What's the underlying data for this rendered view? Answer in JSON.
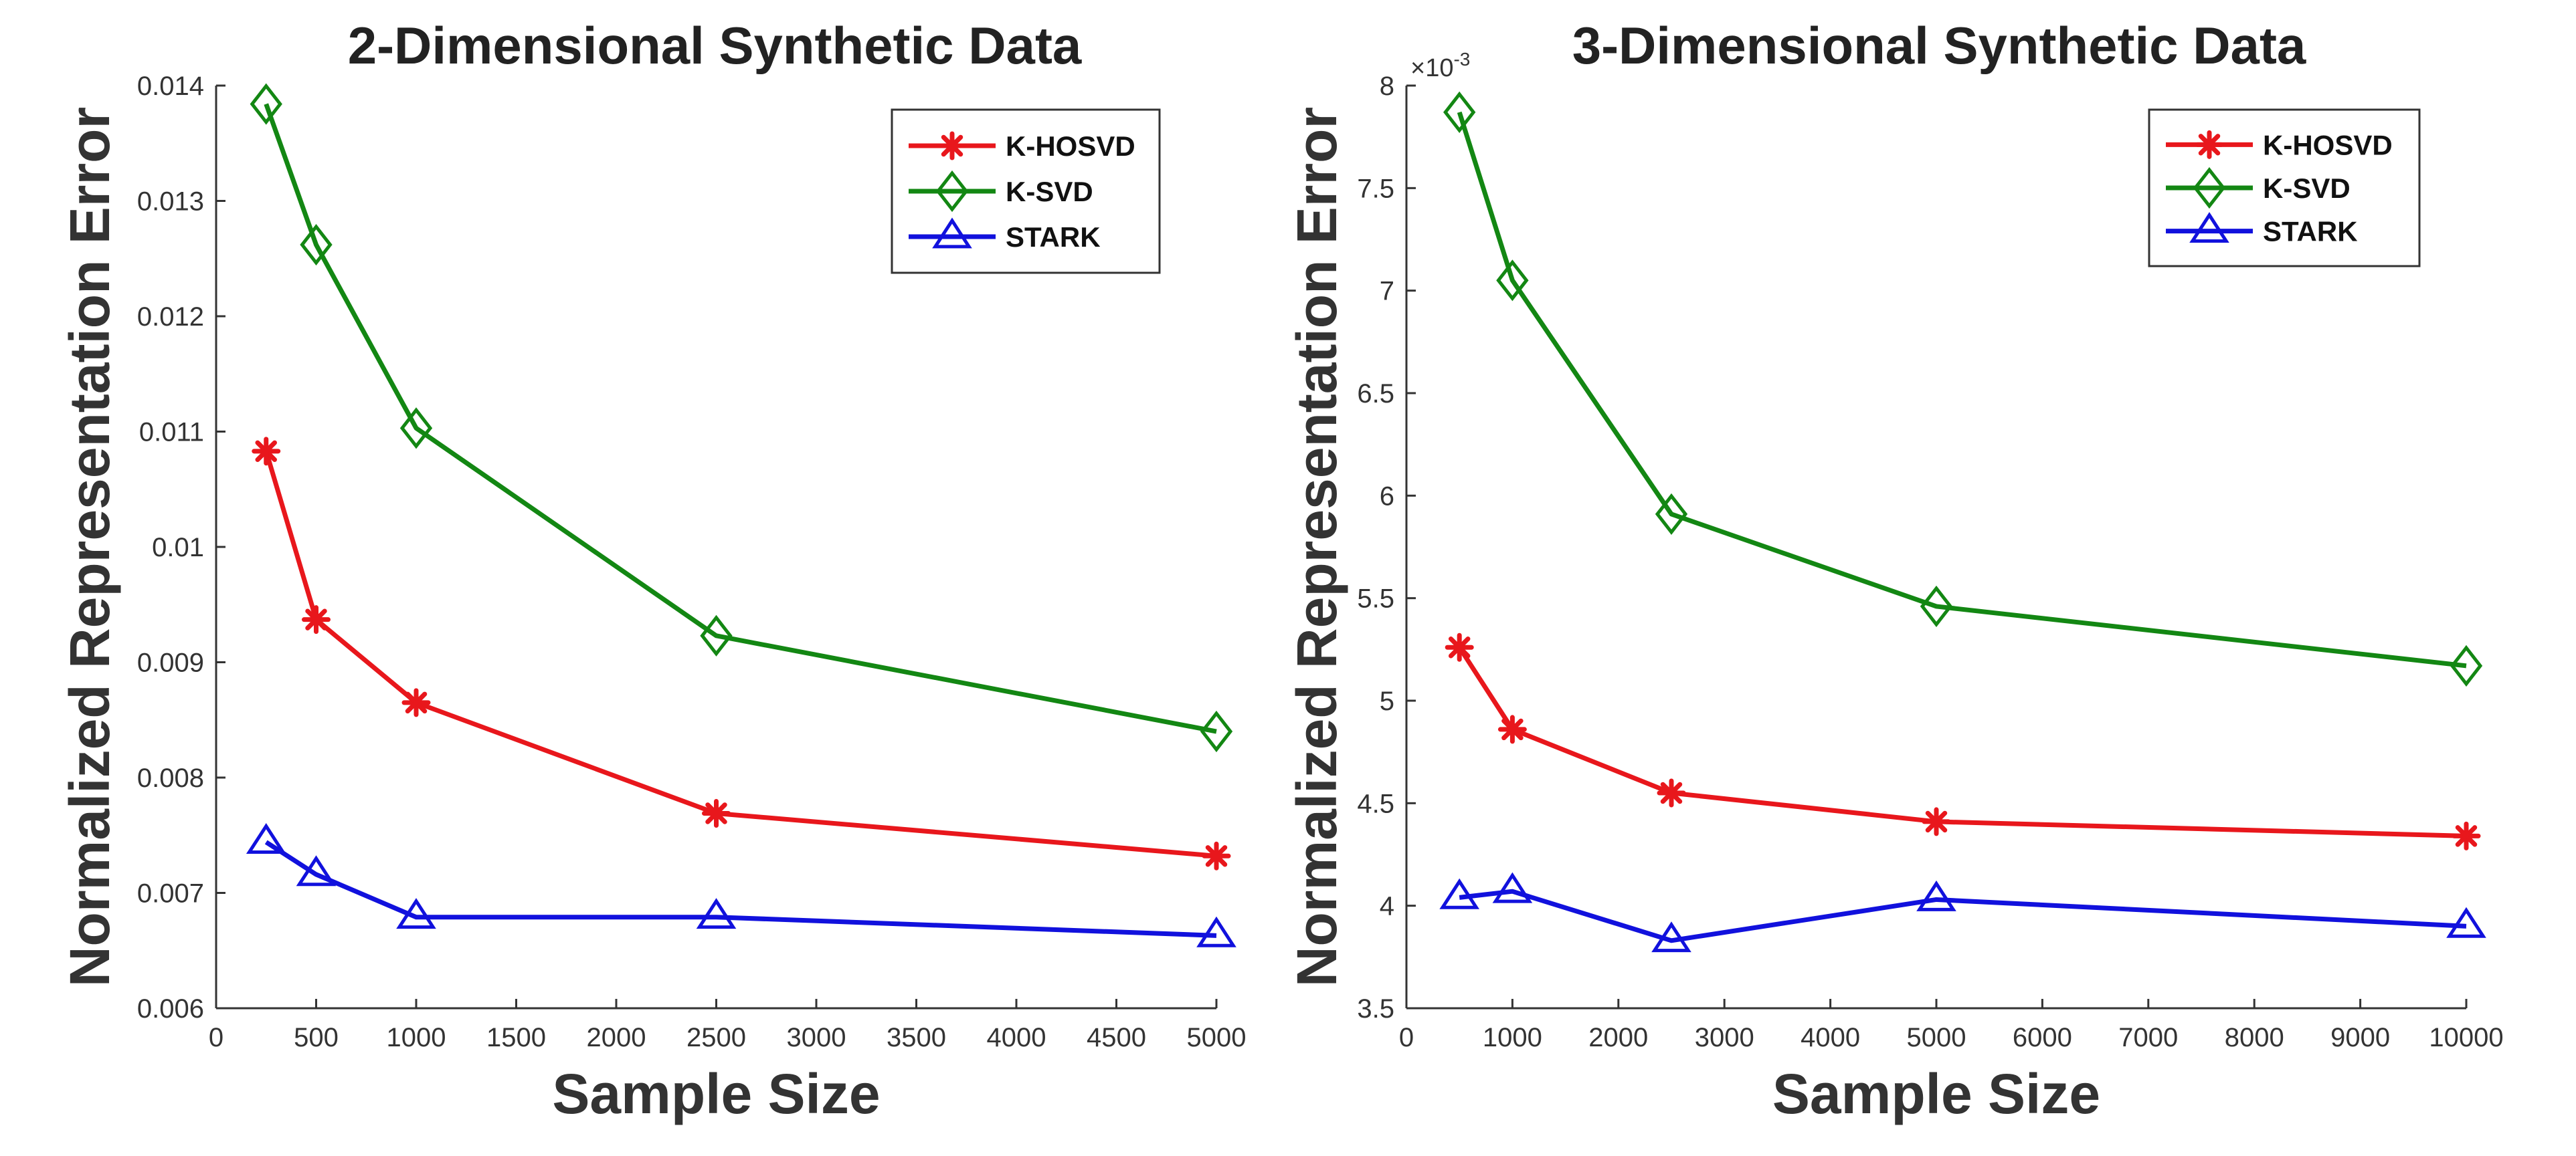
{
  "chart_data": [
    {
      "type": "line",
      "title": "2-Dimensional Synthetic Data",
      "xlabel": "Sample Size",
      "ylabel": "Normalized Representation Error",
      "xlim": [
        0,
        5000
      ],
      "ylim": [
        0.006,
        0.014
      ],
      "xticks": [
        0,
        500,
        1000,
        1500,
        2000,
        2500,
        3000,
        3500,
        4000,
        4500,
        5000
      ],
      "xtick_labels": [
        "0",
        "500",
        "1000",
        "1500",
        "2000",
        "2500",
        "3000",
        "3500",
        "4000",
        "4500",
        "5000"
      ],
      "yticks": [
        0.006,
        0.007,
        0.008,
        0.009,
        0.01,
        0.011,
        0.012,
        0.013,
        0.014
      ],
      "ytick_labels": [
        "0.006",
        "0.007",
        "0.008",
        "0.009",
        "0.01",
        "0.011",
        "0.012",
        "0.013",
        "0.014"
      ],
      "exponent_label": "",
      "legend_position": "top-right",
      "grid": false,
      "series": [
        {
          "name": "K-HOSVD",
          "color": "#e8171c",
          "marker": "star",
          "x": [
            250,
            500,
            1000,
            2500,
            5000
          ],
          "values": [
            0.01083,
            0.00937,
            0.00865,
            0.00769,
            0.00732
          ]
        },
        {
          "name": "K-SVD",
          "color": "#138713",
          "marker": "diamond",
          "x": [
            250,
            500,
            1000,
            2500,
            5000
          ],
          "values": [
            0.01384,
            0.01262,
            0.01103,
            0.00923,
            0.0084
          ]
        },
        {
          "name": "STARK",
          "color": "#1111dd",
          "marker": "triangle",
          "x": [
            250,
            500,
            1000,
            2500,
            5000
          ],
          "values": [
            0.00744,
            0.00716,
            0.00679,
            0.00679,
            0.00663
          ]
        }
      ]
    },
    {
      "type": "line",
      "title": "3-Dimensional Synthetic Data",
      "xlabel": "Sample Size",
      "ylabel": "Normalized Representation Error",
      "xlim": [
        0,
        10000
      ],
      "ylim": [
        3.5,
        8
      ],
      "xticks": [
        0,
        1000,
        2000,
        3000,
        4000,
        5000,
        6000,
        7000,
        8000,
        9000,
        10000
      ],
      "xtick_labels": [
        "0",
        "1000",
        "2000",
        "3000",
        "4000",
        "5000",
        "6000",
        "7000",
        "8000",
        "9000",
        "10000"
      ],
      "yticks": [
        3.5,
        4,
        4.5,
        5,
        5.5,
        6,
        6.5,
        7,
        7.5,
        8
      ],
      "ytick_labels": [
        "3.5",
        "4",
        "4.5",
        "5",
        "5.5",
        "6",
        "6.5",
        "7",
        "7.5",
        "8"
      ],
      "exponent_label": "×10",
      "exponent_power": "-3",
      "legend_position": "top-right",
      "grid": false,
      "series": [
        {
          "name": "K-HOSVD",
          "color": "#e8171c",
          "marker": "star",
          "x": [
            500,
            1000,
            2500,
            5000,
            10000
          ],
          "values": [
            5.26,
            4.86,
            4.55,
            4.41,
            4.34
          ]
        },
        {
          "name": "K-SVD",
          "color": "#138713",
          "marker": "diamond",
          "x": [
            500,
            1000,
            2500,
            5000,
            10000
          ],
          "values": [
            7.87,
            7.05,
            5.91,
            5.46,
            5.17
          ]
        },
        {
          "name": "STARK",
          "color": "#1111dd",
          "marker": "triangle",
          "x": [
            500,
            1000,
            2500,
            5000,
            10000
          ],
          "values": [
            4.04,
            4.07,
            3.83,
            4.03,
            3.9
          ]
        }
      ]
    }
  ]
}
